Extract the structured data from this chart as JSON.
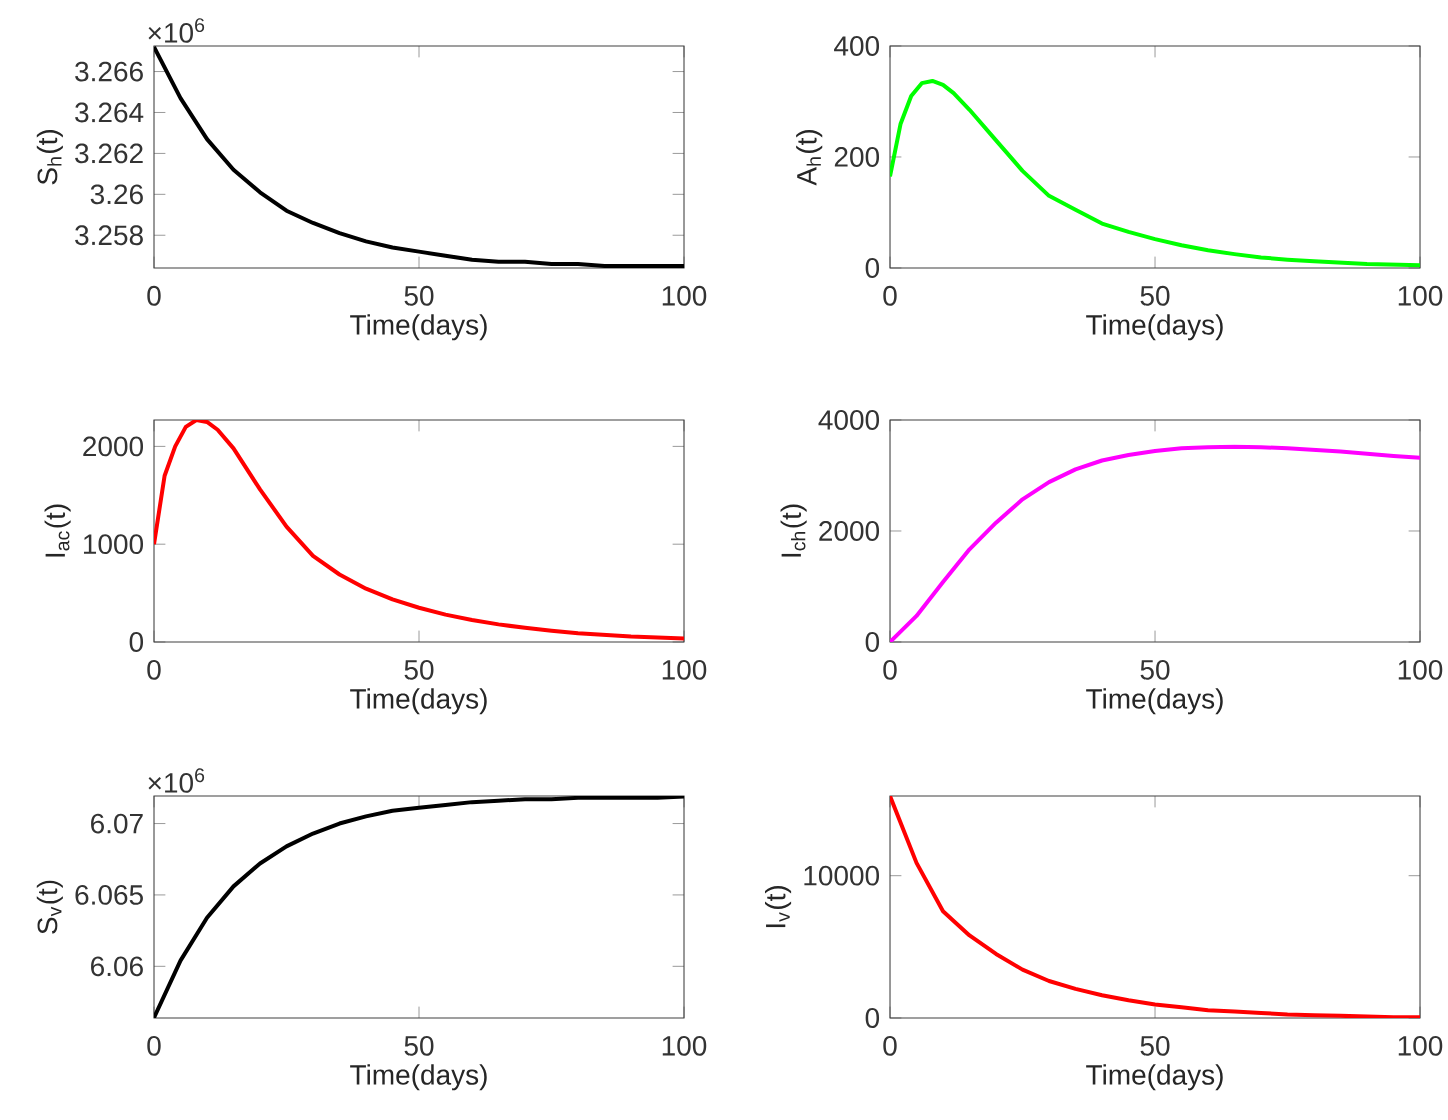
{
  "chart_data": [
    {
      "type": "line",
      "xlabel": "Time(days)",
      "ylabel": "S$_{h}$(t)",
      "annotations": [
        "×10$^{6}$"
      ],
      "x": [
        0,
        5,
        10,
        15,
        20,
        25,
        30,
        35,
        40,
        45,
        50,
        55,
        60,
        65,
        70,
        75,
        80,
        85,
        90,
        95,
        100
      ],
      "series": [
        {
          "color": "#000000",
          "values": [
            3.2672,
            3.2647,
            3.2627,
            3.2612,
            3.2601,
            3.2592,
            3.2586,
            3.2581,
            3.2577,
            3.2574,
            3.2572,
            3.257,
            3.2568,
            3.2567,
            3.2567,
            3.2566,
            3.2566,
            3.2565,
            3.2565,
            3.2565,
            3.2565
          ]
        }
      ],
      "xlim": [
        0,
        100
      ],
      "xticks": [
        0,
        50,
        100
      ],
      "ylim": [
        3.2564,
        3.26725
      ],
      "yticks": [
        3.258,
        3.26,
        3.262,
        3.264,
        3.266
      ]
    },
    {
      "type": "line",
      "xlabel": "Time(days)",
      "ylabel": "A$_{h}$(t)",
      "x": [
        0,
        2,
        4,
        6,
        8,
        10,
        12,
        15,
        20,
        25,
        30,
        35,
        40,
        45,
        50,
        55,
        60,
        65,
        70,
        75,
        80,
        90,
        100
      ],
      "series": [
        {
          "color": "#00ff00",
          "values": [
            165,
            260,
            310,
            333,
            337,
            330,
            315,
            285,
            230,
            175,
            130,
            105,
            80,
            65,
            52,
            41,
            32,
            25,
            19,
            15,
            12,
            7,
            5
          ]
        }
      ],
      "xlim": [
        0,
        100
      ],
      "xticks": [
        0,
        50,
        100
      ],
      "ylim": [
        0,
        400
      ],
      "yticks": [
        0,
        200,
        400
      ]
    },
    {
      "type": "line",
      "xlabel": "Time(days)",
      "ylabel": "I$_{ac}$(t)",
      "x": [
        0,
        2,
        4,
        6,
        8,
        10,
        12,
        15,
        20,
        25,
        30,
        35,
        40,
        45,
        50,
        55,
        60,
        65,
        70,
        75,
        80,
        90,
        100
      ],
      "series": [
        {
          "color": "#ff0000",
          "values": [
            1000,
            1700,
            2000,
            2200,
            2270,
            2250,
            2170,
            1980,
            1560,
            1180,
            880,
            690,
            545,
            435,
            350,
            280,
            225,
            180,
            145,
            115,
            90,
            55,
            35
          ]
        }
      ],
      "xlim": [
        0,
        100
      ],
      "xticks": [
        0,
        50,
        100
      ],
      "ylim": [
        0,
        2270
      ],
      "yticks": [
        0,
        1000,
        2000
      ]
    },
    {
      "type": "line",
      "xlabel": "Time(days)",
      "ylabel": "I$_{ch}$(t)",
      "x": [
        0,
        5,
        10,
        15,
        20,
        25,
        30,
        35,
        40,
        45,
        50,
        55,
        60,
        65,
        70,
        75,
        80,
        85,
        90,
        95,
        100
      ],
      "series": [
        {
          "color": "#ff00ff",
          "values": [
            0,
            470,
            1080,
            1670,
            2150,
            2570,
            2880,
            3110,
            3270,
            3370,
            3440,
            3490,
            3510,
            3520,
            3510,
            3490,
            3460,
            3430,
            3390,
            3350,
            3320
          ]
        }
      ],
      "xlim": [
        0,
        100
      ],
      "xticks": [
        0,
        50,
        100
      ],
      "ylim": [
        0,
        4000
      ],
      "yticks": [
        0,
        2000,
        4000
      ]
    },
    {
      "type": "line",
      "xlabel": "Time(days)",
      "ylabel": "S$_{v}$(t)",
      "annotations": [
        "×10$^{6}$"
      ],
      "x": [
        0,
        5,
        10,
        15,
        20,
        25,
        30,
        35,
        40,
        45,
        50,
        55,
        60,
        65,
        70,
        75,
        80,
        85,
        90,
        95,
        100
      ],
      "series": [
        {
          "color": "#000000",
          "values": [
            6.0564,
            6.0604,
            6.0634,
            6.0656,
            6.0672,
            6.0684,
            6.0693,
            6.07,
            6.0705,
            6.0709,
            6.0711,
            6.0713,
            6.0715,
            6.0716,
            6.0717,
            6.0717,
            6.0718,
            6.0718,
            6.0718,
            6.0718,
            6.0719
          ]
        }
      ],
      "xlim": [
        0,
        100
      ],
      "xticks": [
        0,
        50,
        100
      ],
      "ylim": [
        6.05638,
        6.07193
      ],
      "yticks": [
        6.06,
        6.065,
        6.07
      ]
    },
    {
      "type": "line",
      "xlabel": "Time(days)",
      "ylabel": "I$_{v}$(t)",
      "x": [
        0,
        5,
        10,
        15,
        20,
        25,
        30,
        35,
        40,
        45,
        50,
        55,
        60,
        65,
        70,
        75,
        80,
        85,
        90,
        95,
        100
      ],
      "series": [
        {
          "color": "#ff0000",
          "values": [
            15600,
            10900,
            7500,
            5800,
            4500,
            3400,
            2600,
            2050,
            1600,
            1250,
            950,
            750,
            550,
            450,
            350,
            250,
            200,
            150,
            100,
            50,
            50
          ]
        }
      ],
      "xlim": [
        0,
        100
      ],
      "xticks": [
        0,
        50,
        100
      ],
      "ylim": [
        0,
        15600
      ],
      "yticks": [
        0,
        10000
      ]
    }
  ]
}
